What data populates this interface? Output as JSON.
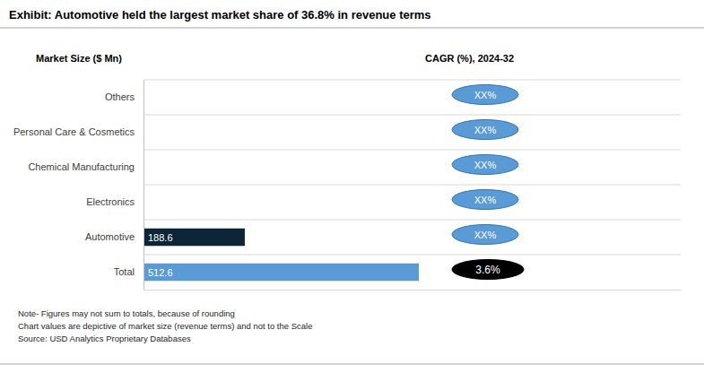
{
  "chart_data": {
    "type": "bar",
    "orientation": "horizontal",
    "title": "Exhibit: Automotive held the largest market share of 36.8% in revenue terms",
    "x_label": "Market Size ($ Mn)",
    "cagr_title": "CAGR (%), 2024-32",
    "categories": [
      "Others",
      "Personal Care & Cosmetics",
      "Chemical Manufacturing",
      "Electronics",
      "Automotive",
      "Total"
    ],
    "values": [
      null,
      null,
      null,
      null,
      188.6,
      512.6
    ],
    "colors": [
      "#5b9bd5",
      "#5b9bd5",
      "#5b9bd5",
      "#5b9bd5",
      "#0d2538",
      "#5b9bd5"
    ],
    "cagr_labels": [
      "XX%",
      "XX%",
      "XX%",
      "XX%",
      "XX%",
      "3.6%"
    ],
    "xlim": [
      0,
      1000
    ],
    "tick_labels": "y",
    "grid": true,
    "data_labels": true,
    "notes": [
      "Note- Figures may not sum to totals, because of rounding",
      "Chart values are depictive of market size (revenue terms) and not to the Scale",
      "Source: USD Analytics Proprietary Databases"
    ]
  }
}
